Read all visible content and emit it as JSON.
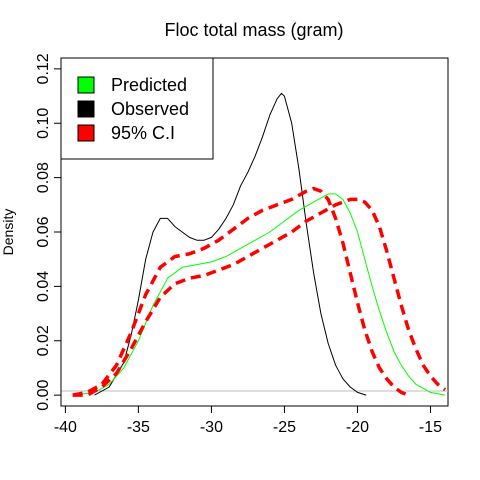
{
  "chart_data": {
    "type": "line",
    "title": "Floc total mass (gram)",
    "xlabel": "",
    "ylabel": "Density",
    "xlim": [
      -40.3,
      -13.8
    ],
    "ylim": [
      -0.004,
      0.124
    ],
    "x_ticks": [
      -40,
      -35,
      -30,
      -25,
      -20,
      -15
    ],
    "x_tick_labels": [
      "-40",
      "-35",
      "-30",
      "-25",
      "-20",
      "-15"
    ],
    "y_ticks": [
      0,
      0.02,
      0.04,
      0.06,
      0.08,
      0.1,
      0.12
    ],
    "y_tick_labels": [
      "0.00",
      "0.02",
      "0.04",
      "0.06",
      "0.08",
      "0.10",
      "0.12"
    ],
    "legend_position": "top-left",
    "legend": [
      {
        "label": "Predicted",
        "color": "#00ff00"
      },
      {
        "label": "Observed",
        "color": "#000000"
      },
      {
        "label": "95% C.I",
        "color": "#ff0000"
      }
    ],
    "series": [
      {
        "name": "Observed",
        "color": "#000000",
        "style": "solid",
        "points": [
          [
            -38,
            0.0
          ],
          [
            -37,
            0.003
          ],
          [
            -36,
            0.012
          ],
          [
            -35.5,
            0.022
          ],
          [
            -35,
            0.035
          ],
          [
            -34.5,
            0.05
          ],
          [
            -34,
            0.06
          ],
          [
            -33.5,
            0.065
          ],
          [
            -33,
            0.065
          ],
          [
            -32.5,
            0.062
          ],
          [
            -32,
            0.06
          ],
          [
            -31.5,
            0.058
          ],
          [
            -31,
            0.057
          ],
          [
            -30.5,
            0.057
          ],
          [
            -30,
            0.058
          ],
          [
            -29.5,
            0.061
          ],
          [
            -29,
            0.065
          ],
          [
            -28.5,
            0.07
          ],
          [
            -28,
            0.077
          ],
          [
            -27.5,
            0.082
          ],
          [
            -27,
            0.088
          ],
          [
            -26.5,
            0.095
          ],
          [
            -26,
            0.103
          ],
          [
            -25.5,
            0.109
          ],
          [
            -25.2,
            0.111
          ],
          [
            -25,
            0.11
          ],
          [
            -24.5,
            0.1
          ],
          [
            -24,
            0.083
          ],
          [
            -23.5,
            0.063
          ],
          [
            -23,
            0.045
          ],
          [
            -22.5,
            0.03
          ],
          [
            -22,
            0.019
          ],
          [
            -21.5,
            0.011
          ],
          [
            -21,
            0.006
          ],
          [
            -20.5,
            0.003
          ],
          [
            -20,
            0.001
          ],
          [
            -19.4,
            0.0
          ]
        ]
      },
      {
        "name": "Predicted",
        "color": "#00ff00",
        "style": "solid",
        "points": [
          [
            -39.5,
            0.0
          ],
          [
            -38,
            0.001
          ],
          [
            -37,
            0.004
          ],
          [
            -36,
            0.01
          ],
          [
            -35,
            0.02
          ],
          [
            -34,
            0.033
          ],
          [
            -33,
            0.043
          ],
          [
            -32,
            0.047
          ],
          [
            -31,
            0.048
          ],
          [
            -30,
            0.049
          ],
          [
            -29,
            0.051
          ],
          [
            -28,
            0.054
          ],
          [
            -27,
            0.057
          ],
          [
            -26,
            0.06
          ],
          [
            -25,
            0.064
          ],
          [
            -24,
            0.068
          ],
          [
            -23,
            0.071
          ],
          [
            -22,
            0.074
          ],
          [
            -21.5,
            0.074
          ],
          [
            -21,
            0.072
          ],
          [
            -20.5,
            0.067
          ],
          [
            -20,
            0.06
          ],
          [
            -19.5,
            0.05
          ],
          [
            -19,
            0.04
          ],
          [
            -18.5,
            0.031
          ],
          [
            -18,
            0.023
          ],
          [
            -17.5,
            0.016
          ],
          [
            -17,
            0.011
          ],
          [
            -16.5,
            0.007
          ],
          [
            -16,
            0.004
          ],
          [
            -15,
            0.001
          ],
          [
            -14,
            0.0
          ]
        ]
      },
      {
        "name": "95% C.I",
        "color": "#ff0000",
        "style": "dashed",
        "points": [
          [
            -39.5,
            0.0
          ],
          [
            -38.5,
            0.001
          ],
          [
            -37.5,
            0.004
          ],
          [
            -36.5,
            0.011
          ],
          [
            -35.5,
            0.023
          ],
          [
            -34.5,
            0.037
          ],
          [
            -33.5,
            0.047
          ],
          [
            -32.5,
            0.051
          ],
          [
            -31.5,
            0.052
          ],
          [
            -30.5,
            0.054
          ],
          [
            -29.5,
            0.057
          ],
          [
            -28.5,
            0.061
          ],
          [
            -27.5,
            0.065
          ],
          [
            -26.5,
            0.068
          ],
          [
            -25.5,
            0.07
          ],
          [
            -24.5,
            0.072
          ],
          [
            -23.5,
            0.075
          ],
          [
            -23,
            0.076
          ],
          [
            -22.5,
            0.075
          ],
          [
            -22,
            0.072
          ],
          [
            -21.5,
            0.065
          ],
          [
            -21,
            0.056
          ],
          [
            -20.5,
            0.045
          ],
          [
            -20,
            0.034
          ],
          [
            -19.5,
            0.024
          ],
          [
            -19,
            0.016
          ],
          [
            -18.5,
            0.01
          ],
          [
            -18,
            0.006
          ],
          [
            -17.5,
            0.003
          ],
          [
            -17,
            0.001
          ],
          [
            -16.5,
            0.0
          ]
        ]
      },
      {
        "name": "95% C.I",
        "color": "#ff0000",
        "style": "dashed",
        "points": [
          [
            -39.5,
            0.0
          ],
          [
            -38.5,
            0.0
          ],
          [
            -37.5,
            0.003
          ],
          [
            -36.5,
            0.008
          ],
          [
            -35.5,
            0.017
          ],
          [
            -34.5,
            0.027
          ],
          [
            -33.5,
            0.036
          ],
          [
            -32.5,
            0.041
          ],
          [
            -31.5,
            0.043
          ],
          [
            -30.5,
            0.044
          ],
          [
            -29.5,
            0.046
          ],
          [
            -28.5,
            0.048
          ],
          [
            -27.5,
            0.051
          ],
          [
            -26.5,
            0.054
          ],
          [
            -25.5,
            0.057
          ],
          [
            -24.5,
            0.06
          ],
          [
            -23.5,
            0.064
          ],
          [
            -22.5,
            0.067
          ],
          [
            -21.5,
            0.07
          ],
          [
            -20.5,
            0.072
          ],
          [
            -20,
            0.072
          ],
          [
            -19.5,
            0.071
          ],
          [
            -19,
            0.068
          ],
          [
            -18.5,
            0.062
          ],
          [
            -18,
            0.053
          ],
          [
            -17.5,
            0.043
          ],
          [
            -17,
            0.033
          ],
          [
            -16.5,
            0.024
          ],
          [
            -16,
            0.017
          ],
          [
            -15.5,
            0.011
          ],
          [
            -15,
            0.007
          ],
          [
            -14.5,
            0.004
          ],
          [
            -14,
            0.002
          ]
        ]
      }
    ]
  }
}
